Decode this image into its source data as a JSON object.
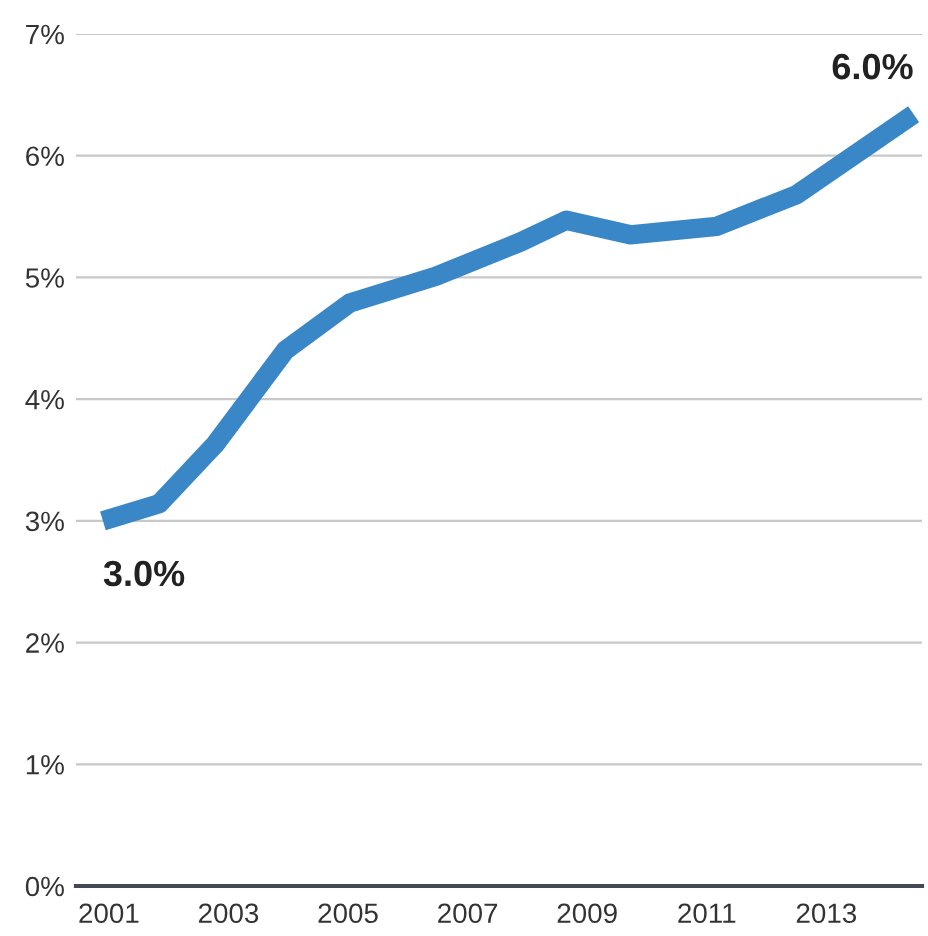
{
  "chart_data": {
    "type": "line",
    "x": [
      2000.9,
      2001.84,
      2002.78,
      2003.95,
      2005.03,
      2006.47,
      2007.88,
      2008.65,
      2009.72,
      2011.17,
      2012.5,
      2014.46
    ],
    "series": [
      {
        "color": "#3a87c8",
        "values": [
          3.0,
          3.14,
          3.63,
          4.4,
          4.79,
          5.01,
          5.29,
          5.47,
          5.35,
          5.42,
          5.68,
          6.34
        ]
      }
    ],
    "xlim": [
      2000.45,
      2014.6
    ],
    "xticks": [
      2001,
      2003,
      2005,
      2007,
      2009,
      2011,
      2013
    ],
    "ylim": [
      0,
      7
    ],
    "yticks": [
      {
        "value": 0,
        "label": "0%"
      },
      {
        "value": 1,
        "label": "1%"
      },
      {
        "value": 2,
        "label": "2%"
      },
      {
        "value": 3,
        "label": "3%"
      },
      {
        "value": 4,
        "label": "4%"
      },
      {
        "value": 5,
        "label": "5%"
      },
      {
        "value": 6,
        "label": "6%"
      },
      {
        "value": 7,
        "label": "7%"
      }
    ],
    "grid": "y",
    "line_style": "solid",
    "marker": "none",
    "annotations": [
      "3.0%",
      "6.0%"
    ]
  }
}
